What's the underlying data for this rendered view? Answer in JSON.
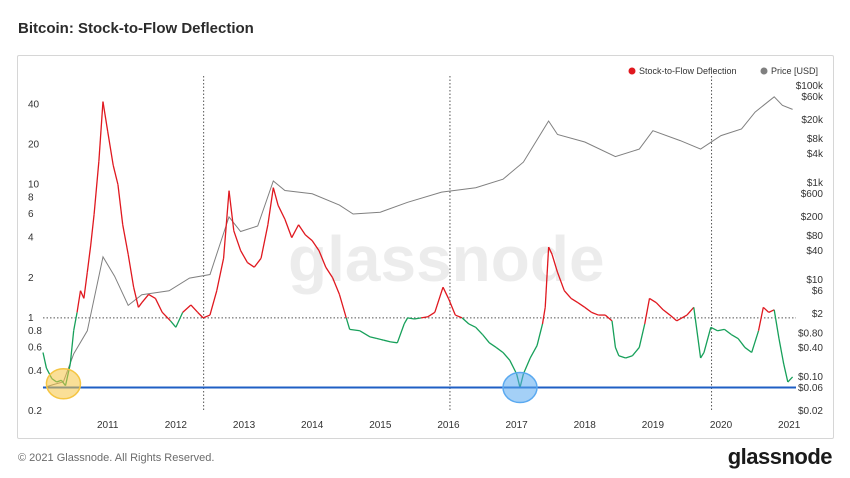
{
  "title": "Bitcoin: Stock-to-Flow Deflection",
  "footer": {
    "copyright": "© 2021 Glassnode. All Rights Reserved.",
    "logo": "glassnode"
  },
  "watermark": "glassnode",
  "chart_data": {
    "type": "line",
    "title": "Bitcoin: Stock-to-Flow Deflection",
    "legend": [
      {
        "name": "Stock-to-Flow Deflection",
        "color": "#e0181f"
      },
      {
        "name": "Price [USD]",
        "color": "#808080"
      }
    ],
    "legend_position": "top-right",
    "x_ticks": [
      "2011",
      "2012",
      "2013",
      "2014",
      "2015",
      "2016",
      "2017",
      "2018",
      "2019",
      "2020",
      "2021"
    ],
    "left_axis": {
      "scale": "log",
      "range": [
        0.2,
        55
      ],
      "ticks": [
        "40",
        "20",
        "10",
        "8",
        "6",
        "4",
        "2",
        "1",
        "0.8",
        "0.6",
        "0.4",
        "0.2"
      ]
    },
    "right_axis": {
      "scale": "log",
      "label": "Price [USD]",
      "range": [
        0.02,
        100000
      ],
      "ticks": [
        "$100k",
        "$60k",
        "$20k",
        "$8k",
        "$4k",
        "$1k",
        "$600",
        "$200",
        "$80",
        "$40",
        "$10",
        "$6",
        "$2",
        "$0.80",
        "$0.40",
        "$0.10",
        "$0.06",
        "$0.02"
      ]
    },
    "reference_lines": {
      "deflection_one": 1,
      "support_level": 0.3,
      "halvings": [
        "2012-11-28",
        "2016-07-09",
        "2020-05-11"
      ]
    },
    "highlights": [
      {
        "date": "2010.85",
        "value": 0.32,
        "color": "#f5c542"
      },
      {
        "date": "2017.55",
        "value": 0.3,
        "color": "#5aa9f0"
      }
    ],
    "deflection_series": {
      "name": "Stock-to-Flow Deflection",
      "color_above_1": "#e0181f",
      "color_below_1": "#17a05a",
      "points": [
        [
          2010.55,
          0.55
        ],
        [
          2010.6,
          0.42
        ],
        [
          2010.68,
          0.35
        ],
        [
          2010.75,
          0.33
        ],
        [
          2010.82,
          0.34
        ],
        [
          2010.88,
          0.31
        ],
        [
          2010.95,
          0.45
        ],
        [
          2011.0,
          0.8
        ],
        [
          2011.05,
          1.1
        ],
        [
          2011.1,
          1.6
        ],
        [
          2011.15,
          1.4
        ],
        [
          2011.2,
          2.2
        ],
        [
          2011.25,
          3.5
        ],
        [
          2011.3,
          6.0
        ],
        [
          2011.37,
          15.0
        ],
        [
          2011.43,
          42.0
        ],
        [
          2011.5,
          25.0
        ],
        [
          2011.58,
          14.0
        ],
        [
          2011.65,
          10.0
        ],
        [
          2011.72,
          5.0
        ],
        [
          2011.8,
          3.0
        ],
        [
          2011.88,
          1.7
        ],
        [
          2011.95,
          1.2
        ],
        [
          2012.0,
          1.3
        ],
        [
          2012.1,
          1.5
        ],
        [
          2012.2,
          1.4
        ],
        [
          2012.3,
          1.1
        ],
        [
          2012.42,
          0.95
        ],
        [
          2012.5,
          0.85
        ],
        [
          2012.6,
          1.1
        ],
        [
          2012.72,
          1.25
        ],
        [
          2012.82,
          1.1
        ],
        [
          2012.9,
          1.0
        ],
        [
          2013.0,
          1.05
        ],
        [
          2013.1,
          1.6
        ],
        [
          2013.2,
          2.8
        ],
        [
          2013.28,
          9.0
        ],
        [
          2013.35,
          4.5
        ],
        [
          2013.45,
          3.2
        ],
        [
          2013.55,
          2.6
        ],
        [
          2013.65,
          2.4
        ],
        [
          2013.75,
          2.8
        ],
        [
          2013.85,
          5.0
        ],
        [
          2013.93,
          9.5
        ],
        [
          2014.0,
          7.0
        ],
        [
          2014.1,
          5.5
        ],
        [
          2014.2,
          4.0
        ],
        [
          2014.3,
          5.0
        ],
        [
          2014.4,
          4.2
        ],
        [
          2014.5,
          3.8
        ],
        [
          2014.6,
          3.2
        ],
        [
          2014.7,
          2.4
        ],
        [
          2014.8,
          2.0
        ],
        [
          2014.9,
          1.5
        ],
        [
          2015.0,
          1.0
        ],
        [
          2015.05,
          0.82
        ],
        [
          2015.2,
          0.8
        ],
        [
          2015.35,
          0.72
        ],
        [
          2015.45,
          0.7
        ],
        [
          2015.55,
          0.68
        ],
        [
          2015.65,
          0.66
        ],
        [
          2015.75,
          0.65
        ],
        [
          2015.85,
          0.9
        ],
        [
          2015.9,
          1.0
        ],
        [
          2016.0,
          0.98
        ],
        [
          2016.1,
          1.0
        ],
        [
          2016.2,
          1.02
        ],
        [
          2016.3,
          1.1
        ],
        [
          2016.42,
          1.7
        ],
        [
          2016.5,
          1.4
        ],
        [
          2016.6,
          1.05
        ],
        [
          2016.7,
          1.0
        ],
        [
          2016.8,
          0.9
        ],
        [
          2016.9,
          0.85
        ],
        [
          2017.0,
          0.75
        ],
        [
          2017.1,
          0.65
        ],
        [
          2017.2,
          0.6
        ],
        [
          2017.3,
          0.55
        ],
        [
          2017.4,
          0.48
        ],
        [
          2017.5,
          0.38
        ],
        [
          2017.55,
          0.3
        ],
        [
          2017.6,
          0.38
        ],
        [
          2017.7,
          0.5
        ],
        [
          2017.8,
          0.62
        ],
        [
          2017.88,
          0.9
        ],
        [
          2017.92,
          1.2
        ],
        [
          2017.97,
          3.4
        ],
        [
          2018.02,
          3.0
        ],
        [
          2018.1,
          2.2
        ],
        [
          2018.2,
          1.6
        ],
        [
          2018.3,
          1.4
        ],
        [
          2018.4,
          1.3
        ],
        [
          2018.5,
          1.2
        ],
        [
          2018.6,
          1.1
        ],
        [
          2018.7,
          1.05
        ],
        [
          2018.8,
          1.05
        ],
        [
          2018.9,
          0.95
        ],
        [
          2018.95,
          0.6
        ],
        [
          2019.0,
          0.52
        ],
        [
          2019.1,
          0.5
        ],
        [
          2019.2,
          0.52
        ],
        [
          2019.3,
          0.6
        ],
        [
          2019.38,
          0.9
        ],
        [
          2019.45,
          1.4
        ],
        [
          2019.55,
          1.3
        ],
        [
          2019.65,
          1.15
        ],
        [
          2019.75,
          1.05
        ],
        [
          2019.85,
          0.95
        ],
        [
          2020.0,
          1.05
        ],
        [
          2020.1,
          1.2
        ],
        [
          2020.2,
          0.5
        ],
        [
          2020.25,
          0.55
        ],
        [
          2020.35,
          0.85
        ],
        [
          2020.45,
          0.8
        ],
        [
          2020.55,
          0.82
        ],
        [
          2020.65,
          0.75
        ],
        [
          2020.75,
          0.7
        ],
        [
          2020.85,
          0.6
        ],
        [
          2020.95,
          0.55
        ],
        [
          2021.05,
          0.8
        ],
        [
          2021.12,
          1.2
        ],
        [
          2021.2,
          1.1
        ],
        [
          2021.28,
          1.15
        ],
        [
          2021.35,
          0.7
        ],
        [
          2021.42,
          0.45
        ],
        [
          2021.48,
          0.33
        ],
        [
          2021.55,
          0.36
        ]
      ]
    },
    "price_series": {
      "name": "Price [USD]",
      "color": "#808080",
      "points": [
        [
          2010.55,
          0.06
        ],
        [
          2010.7,
          0.07
        ],
        [
          2010.85,
          0.08
        ],
        [
          2011.0,
          0.3
        ],
        [
          2011.2,
          0.9
        ],
        [
          2011.43,
          30
        ],
        [
          2011.6,
          12
        ],
        [
          2011.8,
          3
        ],
        [
          2012.0,
          5
        ],
        [
          2012.4,
          6
        ],
        [
          2012.7,
          11
        ],
        [
          2013.0,
          13
        ],
        [
          2013.28,
          200
        ],
        [
          2013.45,
          100
        ],
        [
          2013.7,
          130
        ],
        [
          2013.93,
          1100
        ],
        [
          2014.1,
          700
        ],
        [
          2014.5,
          600
        ],
        [
          2014.9,
          350
        ],
        [
          2015.1,
          230
        ],
        [
          2015.5,
          250
        ],
        [
          2015.9,
          400
        ],
        [
          2016.4,
          650
        ],
        [
          2016.9,
          800
        ],
        [
          2017.3,
          1200
        ],
        [
          2017.6,
          2700
        ],
        [
          2017.97,
          19000
        ],
        [
          2018.1,
          10000
        ],
        [
          2018.5,
          7000
        ],
        [
          2018.95,
          3500
        ],
        [
          2019.3,
          5000
        ],
        [
          2019.5,
          12000
        ],
        [
          2019.9,
          7500
        ],
        [
          2020.2,
          5000
        ],
        [
          2020.5,
          9500
        ],
        [
          2020.8,
          13000
        ],
        [
          2021.0,
          29000
        ],
        [
          2021.28,
          60000
        ],
        [
          2021.4,
          40000
        ],
        [
          2021.55,
          33000
        ]
      ]
    }
  }
}
